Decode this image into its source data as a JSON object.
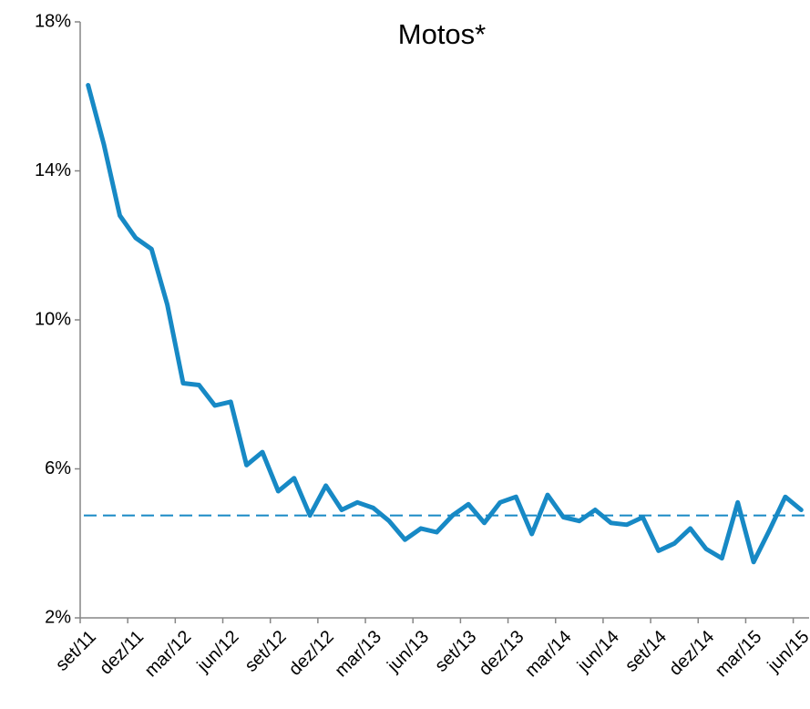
{
  "chart_data": {
    "type": "line",
    "title": "Motos*",
    "categories": [
      "set/11",
      null,
      null,
      "dez/11",
      null,
      null,
      "mar/12",
      null,
      null,
      "jun/12",
      null,
      null,
      "set/12",
      null,
      null,
      "dez/12",
      null,
      null,
      "mar/13",
      null,
      null,
      "jun/13",
      null,
      null,
      "set/13",
      null,
      null,
      "dez/13",
      null,
      null,
      "mar/14",
      null,
      null,
      "jun/14",
      null,
      null,
      "set/14",
      null,
      null,
      "dez/14",
      null,
      null,
      "mar/15",
      null,
      null,
      "jun/15"
    ],
    "values": [
      16.3,
      14.7,
      12.8,
      12.2,
      11.9,
      10.4,
      8.3,
      8.25,
      7.7,
      7.8,
      6.1,
      6.45,
      5.4,
      5.75,
      4.75,
      5.55,
      4.9,
      5.1,
      4.95,
      4.6,
      4.1,
      4.4,
      4.3,
      4.75,
      5.05,
      4.55,
      5.1,
      5.25,
      4.25,
      5.3,
      4.7,
      4.6,
      4.9,
      4.55,
      4.5,
      4.7,
      3.8,
      4.0,
      4.4,
      3.85,
      3.6,
      5.1,
      3.5,
      4.35,
      5.25,
      4.9
    ],
    "color": "#1789c5",
    "reference_line": 4.75,
    "reference_color": "#1789c5",
    "ylim": [
      2,
      18
    ],
    "yticks": [
      {
        "value": 2,
        "label": "2%"
      },
      {
        "value": 6,
        "label": "6%"
      },
      {
        "value": 10,
        "label": "10%"
      },
      {
        "value": 14,
        "label": "14%"
      },
      {
        "value": 18,
        "label": "18%"
      }
    ],
    "grid": false
  }
}
